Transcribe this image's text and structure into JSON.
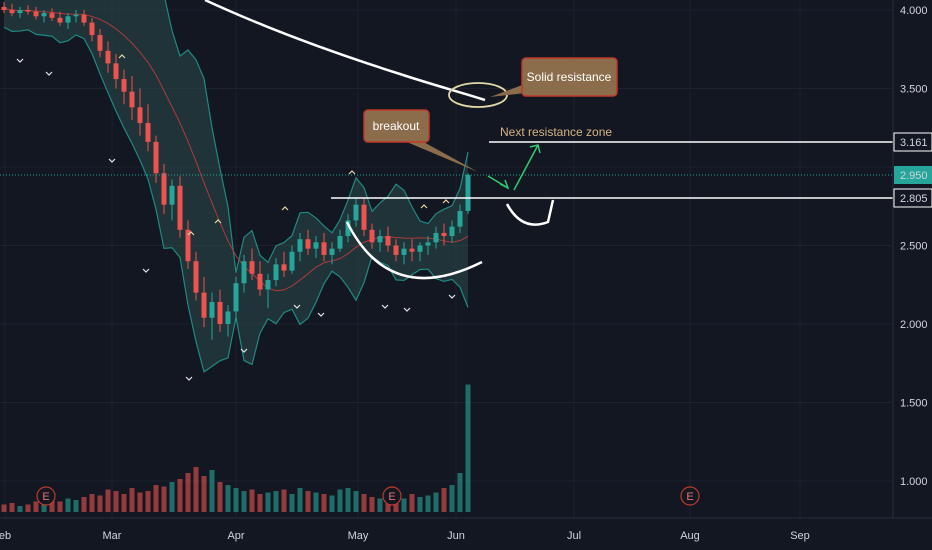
{
  "chart_data": {
    "type": "candlestick",
    "title": "",
    "colors": {
      "background": "#131722",
      "up": "#26a69a",
      "down": "#ef5350",
      "volume_up": "#26a69a",
      "volume_down": "#ef5350",
      "band_fill": "#2a4a4a",
      "band_line": "#1f8a83",
      "ma_red": "#b03a3a",
      "ma_white": "#ffffff",
      "price_line": "#26a69a",
      "callout": "#8b6d4c",
      "callout_border": "#c0392b",
      "arrow": "#2ecc71",
      "resistance_text": "#d4b483"
    },
    "x_ticks": [
      {
        "label": "eb",
        "date": "2020-02-03"
      },
      {
        "label": "Mar",
        "date": "2020-03-02"
      },
      {
        "label": "Apr",
        "date": "2020-04-01"
      },
      {
        "label": "May",
        "date": "2020-05-01"
      },
      {
        "label": "Jun",
        "date": "2020-06-01"
      },
      {
        "label": "Jul",
        "date": "2020-07-01"
      },
      {
        "label": "Aug",
        "date": "2020-08-03"
      },
      {
        "label": "Sep",
        "date": "2020-09-01"
      }
    ],
    "y_ticks": [
      "4.000",
      "3.500",
      "2.500",
      "2.000",
      "1.500",
      "1.000"
    ],
    "ylim": [
      0.77,
      4.05
    ],
    "price_labels": [
      {
        "text": "3.161",
        "value": 3.161,
        "style": "line"
      },
      {
        "text": "2.950",
        "value": 2.95,
        "style": "current"
      },
      {
        "text": "2.805",
        "value": 2.805,
        "style": "line"
      }
    ],
    "earnings_markers": [
      "E",
      "E",
      "E"
    ],
    "annotations": {
      "solid_resistance": "Solid resistance",
      "breakout": "breakout",
      "next_resistance": "Next resistance zone"
    },
    "candles": [
      [
        4.02,
        4.05,
        3.98,
        4.0
      ],
      [
        4.0,
        4.04,
        3.96,
        3.98
      ],
      [
        3.98,
        4.02,
        3.95,
        4.0
      ],
      [
        4.0,
        4.03,
        3.97,
        3.99
      ],
      [
        3.99,
        4.02,
        3.94,
        3.96
      ],
      [
        3.96,
        4.0,
        3.92,
        3.98
      ],
      [
        3.98,
        4.01,
        3.93,
        3.95
      ],
      [
        3.95,
        3.99,
        3.9,
        3.92
      ],
      [
        3.92,
        3.98,
        3.88,
        3.96
      ],
      [
        3.96,
        4.0,
        3.92,
        3.97
      ],
      [
        3.97,
        4.0,
        3.9,
        3.92
      ],
      [
        3.92,
        3.95,
        3.8,
        3.84
      ],
      [
        3.84,
        3.88,
        3.7,
        3.74
      ],
      [
        3.74,
        3.8,
        3.6,
        3.66
      ],
      [
        3.66,
        3.72,
        3.5,
        3.56
      ],
      [
        3.56,
        3.62,
        3.4,
        3.48
      ],
      [
        3.48,
        3.58,
        3.3,
        3.38
      ],
      [
        3.38,
        3.5,
        3.2,
        3.28
      ],
      [
        3.28,
        3.4,
        3.1,
        3.16
      ],
      [
        3.16,
        3.2,
        2.9,
        2.96
      ],
      [
        2.96,
        3.02,
        2.7,
        2.76
      ],
      [
        2.76,
        2.92,
        2.66,
        2.88
      ],
      [
        2.88,
        2.94,
        2.55,
        2.6
      ],
      [
        2.6,
        2.66,
        2.35,
        2.4
      ],
      [
        2.4,
        2.46,
        2.15,
        2.2
      ],
      [
        2.2,
        2.3,
        1.98,
        2.04
      ],
      [
        2.04,
        2.2,
        1.9,
        2.14
      ],
      [
        2.14,
        2.22,
        1.95,
        2.0
      ],
      [
        2.0,
        2.12,
        1.92,
        2.08
      ],
      [
        2.08,
        2.3,
        2.02,
        2.26
      ],
      [
        2.26,
        2.44,
        2.2,
        2.4
      ],
      [
        2.4,
        2.48,
        2.28,
        2.32
      ],
      [
        2.32,
        2.4,
        2.18,
        2.22
      ],
      [
        2.22,
        2.32,
        2.1,
        2.28
      ],
      [
        2.28,
        2.42,
        2.24,
        2.38
      ],
      [
        2.38,
        2.46,
        2.3,
        2.34
      ],
      [
        2.34,
        2.5,
        2.32,
        2.46
      ],
      [
        2.46,
        2.58,
        2.4,
        2.54
      ],
      [
        2.54,
        2.6,
        2.44,
        2.48
      ],
      [
        2.48,
        2.56,
        2.42,
        2.52
      ],
      [
        2.52,
        2.58,
        2.4,
        2.44
      ],
      [
        2.44,
        2.52,
        2.38,
        2.48
      ],
      [
        2.48,
        2.6,
        2.46,
        2.56
      ],
      [
        2.56,
        2.7,
        2.52,
        2.66
      ],
      [
        2.66,
        2.8,
        2.62,
        2.76
      ],
      [
        2.76,
        2.8,
        2.56,
        2.6
      ],
      [
        2.6,
        2.64,
        2.48,
        2.52
      ],
      [
        2.52,
        2.6,
        2.46,
        2.56
      ],
      [
        2.56,
        2.62,
        2.46,
        2.5
      ],
      [
        2.5,
        2.54,
        2.4,
        2.44
      ],
      [
        2.44,
        2.52,
        2.38,
        2.48
      ],
      [
        2.48,
        2.54,
        2.4,
        2.46
      ],
      [
        2.46,
        2.52,
        2.4,
        2.5
      ],
      [
        2.5,
        2.56,
        2.44,
        2.52
      ],
      [
        2.52,
        2.62,
        2.48,
        2.58
      ],
      [
        2.58,
        2.64,
        2.5,
        2.56
      ],
      [
        2.56,
        2.66,
        2.52,
        2.62
      ],
      [
        2.62,
        2.76,
        2.58,
        2.72
      ],
      [
        2.72,
        2.96,
        2.7,
        2.95
      ]
    ],
    "volumes": [
      0.05,
      0.06,
      0.04,
      0.05,
      0.07,
      0.06,
      0.08,
      0.07,
      0.09,
      0.08,
      0.1,
      0.12,
      0.11,
      0.15,
      0.14,
      0.12,
      0.16,
      0.13,
      0.14,
      0.18,
      0.17,
      0.2,
      0.22,
      0.26,
      0.3,
      0.24,
      0.28,
      0.2,
      0.18,
      0.16,
      0.14,
      0.15,
      0.12,
      0.13,
      0.14,
      0.15,
      0.12,
      0.16,
      0.14,
      0.13,
      0.12,
      0.11,
      0.15,
      0.16,
      0.14,
      0.12,
      0.1,
      0.09,
      0.11,
      0.1,
      0.09,
      0.12,
      0.1,
      0.11,
      0.13,
      0.16,
      0.18,
      0.26,
      0.85
    ]
  }
}
